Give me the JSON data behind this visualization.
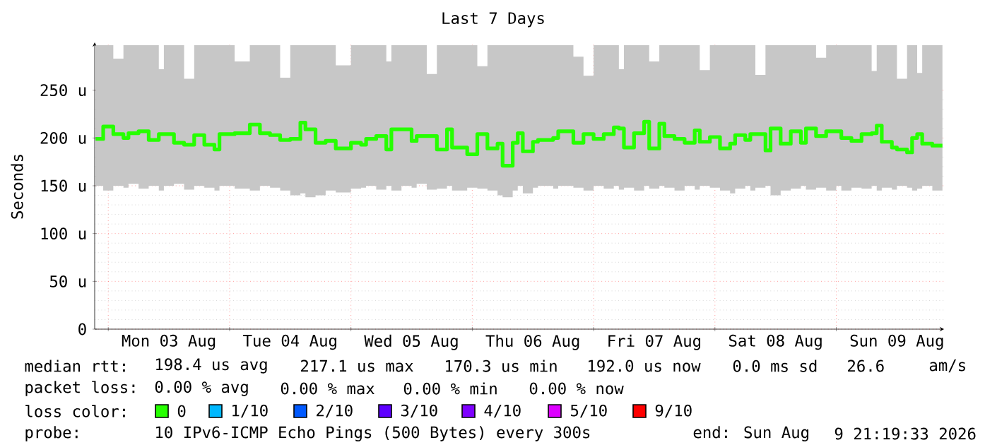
{
  "chart_data": {
    "type": "step",
    "title": "Last 7 Days",
    "ylabel": "Seconds",
    "legend_title": "loss color:",
    "legend": "bottom",
    "grid": true,
    "xlim": [
      "2026-08-02T21:19",
      "2026-08-09T21:19"
    ],
    "xticks": [
      {
        "value": "2026-08-03T00:00",
        "label": null
      },
      {
        "value": "2026-08-03T12:00",
        "label": "Mon 03 Aug"
      },
      {
        "value": "2026-08-04T00:00",
        "label": null
      },
      {
        "value": "2026-08-04T12:00",
        "label": "Tue 04 Aug"
      },
      {
        "value": "2026-08-05T00:00",
        "label": null
      },
      {
        "value": "2026-08-05T12:00",
        "label": "Wed 05 Aug"
      },
      {
        "value": "2026-08-06T00:00",
        "label": null
      },
      {
        "value": "2026-08-06T12:00",
        "label": "Thu 06 Aug"
      },
      {
        "value": "2026-08-07T00:00",
        "label": null
      },
      {
        "value": "2026-08-07T12:00",
        "label": "Fri 07 Aug"
      },
      {
        "value": "2026-08-08T00:00",
        "label": null
      },
      {
        "value": "2026-08-08T12:00",
        "label": "Sat 08 Aug"
      },
      {
        "value": "2026-08-09T00:00",
        "label": null
      },
      {
        "value": "2026-08-09T12:00",
        "label": "Sun 09 Aug"
      }
    ],
    "ylim": [
      0,
      300
    ],
    "yticks": [
      0,
      {
        "value": 50,
        "label": "50 u"
      },
      {
        "value": 100,
        "label": "100 u"
      },
      {
        "value": 150,
        "label": "150 u"
      },
      {
        "value": 200,
        "label": "200 u"
      },
      {
        "value": 250,
        "label": "250 u"
      }
    ],
    "annotations": [
      "median rtt:",
      "198.4 us avg",
      "217.1 us max",
      "170.3 us min",
      "192.0 us now",
      "0.0 ms sd",
      "26.6",
      "am/s",
      "packet loss:",
      "0.00 % avg",
      "0.00 % max",
      "0.00 % min",
      "0.00 % now",
      "probe:",
      "10 IPv6-ICMP Echo Pings (500 Bytes) every 300s",
      "end: Sun Aug",
      "9 21:19:33 2026"
    ],
    "series": [
      {
        "name": "0",
        "color": "#26ff00",
        "x": [
          "2026-08-02T21:30",
          "2026-08-02T23:00",
          "2026-08-03T01:00",
          "2026-08-03T03:00",
          "2026-08-03T04:00",
          "2026-08-03T06:00",
          "2026-08-03T08:00",
          "2026-08-03T10:00",
          "2026-08-03T11:00",
          "2026-08-03T13:00",
          "2026-08-03T15:00",
          "2026-08-03T17:00",
          "2026-08-03T19:00",
          "2026-08-03T21:00",
          "2026-08-03T22:00",
          "2026-08-04T01:00",
          "2026-08-04T04:00",
          "2026-08-04T06:00",
          "2026-08-04T08:00",
          "2026-08-04T10:00",
          "2026-08-04T12:00",
          "2026-08-04T14:00",
          "2026-08-04T15:00",
          "2026-08-04T17:00",
          "2026-08-04T19:00",
          "2026-08-04T21:00",
          "2026-08-05T00:00",
          "2026-08-05T02:00",
          "2026-08-05T03:00",
          "2026-08-05T05:00",
          "2026-08-05T07:00",
          "2026-08-05T08:00",
          "2026-08-05T10:00",
          "2026-08-05T12:00",
          "2026-08-05T13:00",
          "2026-08-05T15:00",
          "2026-08-05T17:00",
          "2026-08-05T19:00",
          "2026-08-05T20:00",
          "2026-08-05T23:00",
          "2026-08-06T01:00",
          "2026-08-06T03:00",
          "2026-08-06T05:00",
          "2026-08-06T06:00",
          "2026-08-06T08:00",
          "2026-08-06T09:00",
          "2026-08-06T10:00",
          "2026-08-06T12:00",
          "2026-08-06T13:00",
          "2026-08-06T16:00",
          "2026-08-06T17:00",
          "2026-08-06T20:00",
          "2026-08-06T22:00",
          "2026-08-07T00:00",
          "2026-08-07T02:00",
          "2026-08-07T04:00",
          "2026-08-07T05:00",
          "2026-08-07T06:00",
          "2026-08-07T08:00",
          "2026-08-07T10:00",
          "2026-08-07T11:00",
          "2026-08-07T13:00",
          "2026-08-07T14:00",
          "2026-08-07T16:00",
          "2026-08-07T18:00",
          "2026-08-07T20:00",
          "2026-08-07T21:00",
          "2026-08-07T23:00",
          "2026-08-08T01:00",
          "2026-08-08T03:00",
          "2026-08-08T04:00",
          "2026-08-08T06:00",
          "2026-08-08T07:00",
          "2026-08-08T08:00",
          "2026-08-08T10:00",
          "2026-08-08T11:00",
          "2026-08-08T13:00",
          "2026-08-08T15:00",
          "2026-08-08T17:00",
          "2026-08-08T18:00",
          "2026-08-08T20:00",
          "2026-08-08T22:00",
          "2026-08-09T00:00",
          "2026-08-09T01:00",
          "2026-08-09T03:00",
          "2026-08-09T05:00",
          "2026-08-09T07:00",
          "2026-08-09T08:00",
          "2026-08-09T09:00",
          "2026-08-09T11:00",
          "2026-08-09T12:00",
          "2026-08-09T14:00",
          "2026-08-09T15:00",
          "2026-08-09T16:00",
          "2026-08-09T17:00",
          "2026-08-09T19:00",
          "2026-08-09T21:00"
        ],
        "values": [
          199,
          212,
          204,
          200,
          205,
          207,
          198,
          204,
          204,
          195,
          193,
          203,
          193,
          188,
          204,
          205,
          214,
          205,
          203,
          198,
          199,
          216,
          209,
          195,
          197,
          189,
          195,
          193,
          199,
          202,
          188,
          209,
          209,
          197,
          202,
          202,
          188,
          209,
          190,
          183,
          204,
          189,
          194,
          171,
          195,
          205,
          186,
          196,
          198,
          200,
          207,
          195,
          204,
          199,
          204,
          211,
          210,
          190,
          205,
          217,
          189,
          215,
          202,
          199,
          195,
          208,
          196,
          201,
          189,
          194,
          203,
          198,
          204,
          204,
          187,
          210,
          194,
          207,
          195,
          210,
          202,
          207,
          207,
          200,
          197,
          204,
          205,
          213,
          196,
          190,
          188,
          185,
          200,
          204,
          194,
          192,
          192
        ],
        "upper": [
          297,
          297,
          283,
          297,
          297,
          297,
          297,
          272,
          297,
          297,
          262,
          297,
          297,
          297,
          297,
          280,
          297,
          297,
          297,
          263,
          297,
          297,
          297,
          297,
          297,
          276,
          297,
          297,
          297,
          297,
          280,
          297,
          297,
          297,
          297,
          267,
          297,
          297,
          297,
          297,
          275,
          297,
          297,
          297,
          297,
          297,
          297,
          297,
          297,
          297,
          297,
          285,
          265,
          297,
          297,
          297,
          272,
          297,
          297,
          297,
          280,
          297,
          297,
          297,
          297,
          297,
          271,
          297,
          297,
          297,
          297,
          297,
          297,
          266,
          297,
          297,
          297,
          297,
          297,
          297,
          284,
          297,
          297,
          297,
          297,
          297,
          270,
          297,
          297,
          297,
          262,
          297,
          297,
          268,
          297,
          297,
          297
        ],
        "lower": [
          150,
          145,
          150,
          148,
          152,
          147,
          150,
          145,
          150,
          152,
          146,
          150,
          148,
          145,
          150,
          147,
          145,
          150,
          148,
          145,
          140,
          142,
          138,
          140,
          145,
          143,
          147,
          148,
          150,
          146,
          150,
          145,
          150,
          148,
          152,
          146,
          147,
          150,
          145,
          148,
          147,
          145,
          140,
          138,
          145,
          150,
          142,
          148,
          150,
          147,
          150,
          148,
          145,
          150,
          147,
          150,
          146,
          148,
          145,
          150,
          147,
          150,
          148,
          145,
          150,
          146,
          150,
          148,
          145,
          142,
          147,
          150,
          145,
          148,
          150,
          140,
          145,
          147,
          150,
          146,
          148,
          145,
          150,
          145,
          148,
          147,
          150,
          145,
          148,
          146,
          150,
          148,
          145,
          147,
          150,
          145,
          142
        ]
      },
      {
        "name": "1/10",
        "color": "#00b8ff"
      },
      {
        "name": "2/10",
        "color": "#0059ff"
      },
      {
        "name": "3/10",
        "color": "#5e00ff"
      },
      {
        "name": "4/10",
        "color": "#7e00ff"
      },
      {
        "name": "5/10",
        "color": "#dd00ff"
      },
      {
        "name": "9/10",
        "color": "#ff0000"
      }
    ]
  }
}
